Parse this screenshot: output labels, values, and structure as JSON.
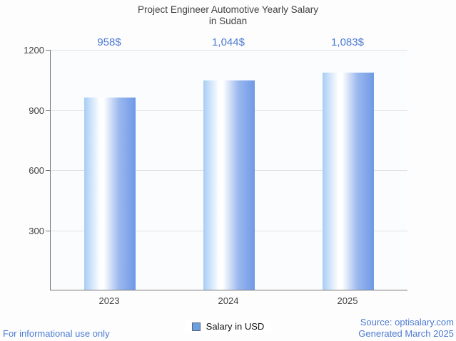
{
  "header": {
    "title_line1": "Project Engineer Automotive Yearly Salary",
    "title_line2": "in Sudan"
  },
  "chart_data": {
    "type": "bar",
    "title": "Project Engineer Automotive Yearly Salary in Sudan",
    "categories": [
      "2023",
      "2024",
      "2025"
    ],
    "series": [
      {
        "name": "Salary in USD",
        "values": [
          958,
          1044,
          1083
        ]
      }
    ],
    "value_labels": [
      "958$",
      "1,044$",
      "1,083$"
    ],
    "xlabel": "",
    "ylabel": "",
    "ylim": [
      0,
      1200
    ],
    "yticks": [
      300,
      600,
      900,
      1200
    ],
    "grid": true,
    "legend_position": "bottom",
    "colors": {
      "bar_gradient_left": "#a7cdf5",
      "bar_gradient_mid": "#ffffff",
      "bar_gradient_right": "#6f99e6",
      "value_label": "#4d7bd0",
      "axis_line": "#757575",
      "gridline": "#e2e2e2",
      "axis_text": "#424242"
    }
  },
  "legend": {
    "label": "Salary in USD",
    "swatch_color": "#69a0dd"
  },
  "footer": {
    "disclaimer": "For informational use only",
    "source": "Source: optisalary.com",
    "generated": "Generated March 2025"
  }
}
